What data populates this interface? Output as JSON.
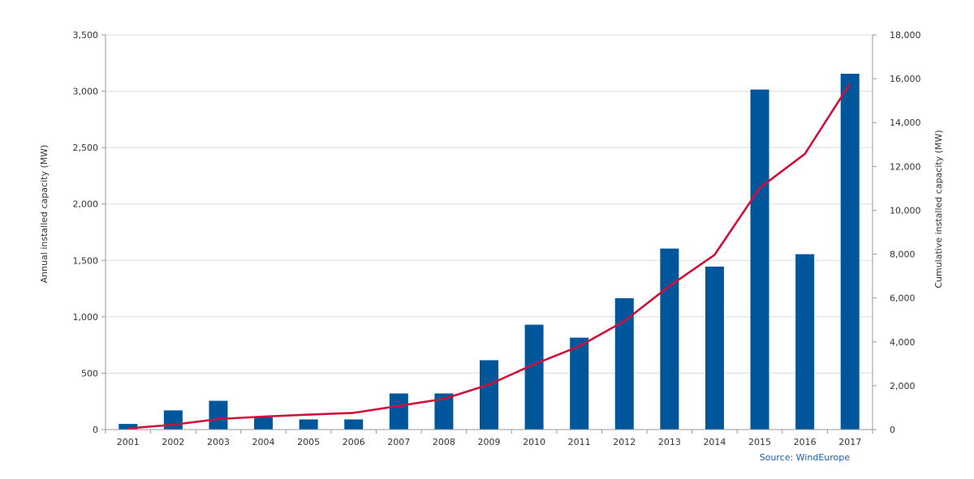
{
  "chart_data": {
    "type": "bar",
    "categories": [
      "2001",
      "2002",
      "2003",
      "2004",
      "2005",
      "2006",
      "2007",
      "2008",
      "2009",
      "2010",
      "2011",
      "2012",
      "2013",
      "2014",
      "2015",
      "2016",
      "2017"
    ],
    "series": [
      {
        "type": "bar",
        "axis": "left",
        "color": "#00569a",
        "values": [
          50,
          170,
          255,
          110,
          90,
          90,
          320,
          320,
          615,
          930,
          815,
          1165,
          1605,
          1445,
          3015,
          1555,
          3155
        ]
      },
      {
        "type": "line",
        "axis": "right",
        "color": "#d0103a",
        "values": [
          50,
          220,
          480,
          590,
          680,
          760,
          1080,
          1400,
          2050,
          2980,
          3800,
          4950,
          6550,
          7970,
          11020,
          12570,
          15780
        ]
      }
    ],
    "ylabel": "Annual installed capacity (MW)",
    "y2label": "Cumulative installed capacity (MW)",
    "ylim": [
      0,
      3500
    ],
    "y2lim": [
      0,
      18000
    ],
    "yticks": [
      "0",
      "500",
      "1,000",
      "1,500",
      "2,000",
      "2,500",
      "3,000",
      "3,500"
    ],
    "y2ticks": [
      "0",
      "2,000",
      "4,000",
      "6,000",
      "8,000",
      "10,000",
      "12,000",
      "14,000",
      "16,000",
      "18,000"
    ],
    "grid": true,
    "source": "Source: WindEurope"
  }
}
